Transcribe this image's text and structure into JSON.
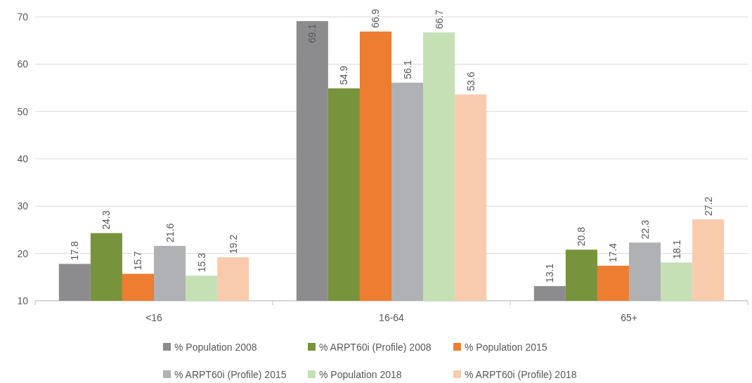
{
  "chart_data": {
    "type": "bar",
    "categories": [
      "<16",
      "16-64",
      "65+"
    ],
    "series": [
      {
        "name": "% Population 2008",
        "color": "#8c8c8f",
        "values": [
          17.8,
          69.1,
          13.1
        ]
      },
      {
        "name": "% ARPT60i (Profile) 2008",
        "color": "#77933c",
        "values": [
          24.3,
          54.9,
          20.8
        ]
      },
      {
        "name": "% Population 2015",
        "color": "#ed7d31",
        "values": [
          15.7,
          66.9,
          17.4
        ]
      },
      {
        "name": "% ARPT60i (Profile) 2015",
        "color": "#b0b1b5",
        "values": [
          21.6,
          56.1,
          22.3
        ]
      },
      {
        "name": "% Population 2018",
        "color": "#c4e0b4",
        "values": [
          15.3,
          66.7,
          18.1
        ]
      },
      {
        "name": "% ARPT60i (Profile) 2018",
        "color": "#f8cbad",
        "values": [
          19.2,
          53.6,
          27.2
        ]
      }
    ],
    "ylim": [
      10,
      70
    ],
    "yticks": [
      10,
      20,
      30,
      40,
      50,
      60,
      70
    ],
    "grid": "y",
    "legend": "bottom",
    "data_labels": true
  }
}
